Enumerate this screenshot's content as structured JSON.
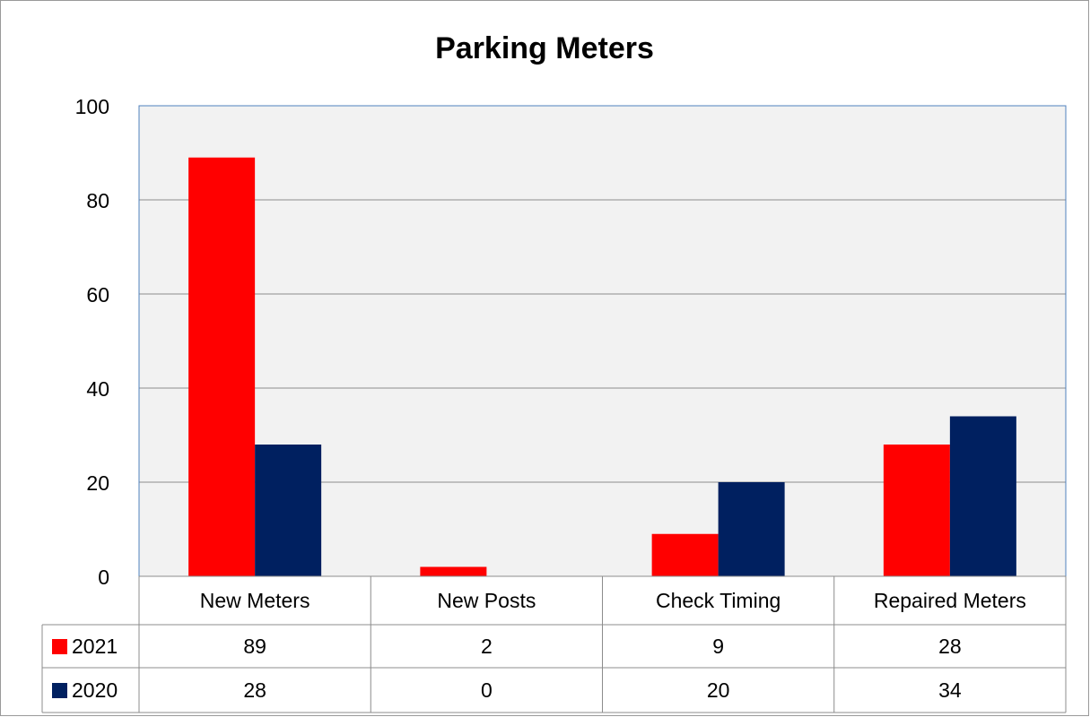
{
  "chart_data": {
    "type": "bar",
    "title": "Parking Meters",
    "categories": [
      "New Meters",
      "New Posts",
      "Check Timing",
      "Repaired Meters"
    ],
    "series": [
      {
        "name": "2021",
        "color": "#ff0000",
        "values": [
          89,
          2,
          9,
          28
        ]
      },
      {
        "name": "2020",
        "color": "#002060",
        "values": [
          28,
          0,
          20,
          34
        ]
      }
    ],
    "ylim": [
      0,
      100
    ],
    "yticks": [
      0,
      20,
      40,
      60,
      80,
      100
    ],
    "grid": true,
    "data_table": true
  }
}
